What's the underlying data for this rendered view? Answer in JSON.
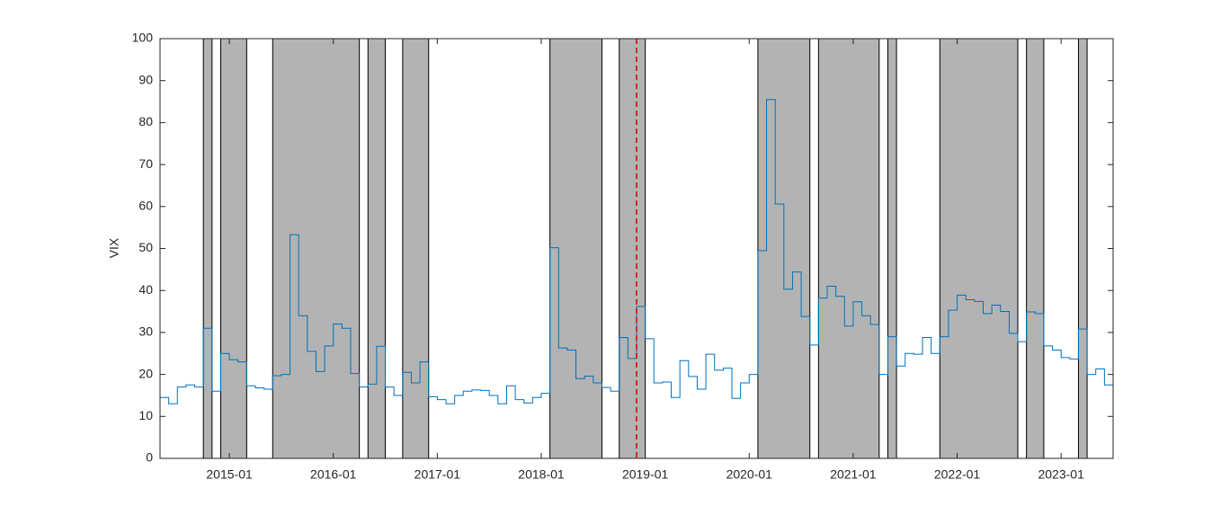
{
  "chart_data": {
    "type": "line",
    "ylabel": "VIX",
    "ylim": [
      0,
      100
    ],
    "yticks": [
      0,
      10,
      20,
      30,
      40,
      50,
      60,
      70,
      80,
      90,
      100
    ],
    "xlim": [
      "2014-05",
      "2023-07"
    ],
    "xticks": [
      "2015-01",
      "2016-01",
      "2017-01",
      "2018-01",
      "2019-01",
      "2020-01",
      "2021-01",
      "2022-01",
      "2023-01"
    ],
    "step": true,
    "shaded_regions": [
      [
        "2014-10",
        "2014-11"
      ],
      [
        "2014-12",
        "2015-03"
      ],
      [
        "2015-06",
        "2016-04"
      ],
      [
        "2016-05",
        "2016-07"
      ],
      [
        "2016-09",
        "2016-12"
      ],
      [
        "2018-02",
        "2018-08"
      ],
      [
        "2018-10",
        "2019-01"
      ],
      [
        "2020-02",
        "2020-08"
      ],
      [
        "2020-09",
        "2021-04"
      ],
      [
        "2021-05",
        "2021-06"
      ],
      [
        "2021-11",
        "2022-08"
      ],
      [
        "2022-09",
        "2022-11"
      ],
      [
        "2023-03",
        "2023-04"
      ]
    ],
    "shade_color": "#b3b3b3",
    "vline": "2018-12",
    "vline_color": "#d62728",
    "series": [
      {
        "color": "#0072bd",
        "x": [
          "2014-05",
          "2014-06",
          "2014-07",
          "2014-08",
          "2014-09",
          "2014-10",
          "2014-11",
          "2014-12",
          "2015-01",
          "2015-02",
          "2015-03",
          "2015-04",
          "2015-05",
          "2015-06",
          "2015-07",
          "2015-08",
          "2015-09",
          "2015-10",
          "2015-11",
          "2015-12",
          "2016-01",
          "2016-02",
          "2016-03",
          "2016-04",
          "2016-05",
          "2016-06",
          "2016-07",
          "2016-08",
          "2016-09",
          "2016-10",
          "2016-11",
          "2016-12",
          "2017-01",
          "2017-02",
          "2017-03",
          "2017-04",
          "2017-05",
          "2017-06",
          "2017-07",
          "2017-08",
          "2017-09",
          "2017-10",
          "2017-11",
          "2017-12",
          "2018-01",
          "2018-02",
          "2018-03",
          "2018-04",
          "2018-05",
          "2018-06",
          "2018-07",
          "2018-08",
          "2018-09",
          "2018-10",
          "2018-11",
          "2018-12",
          "2019-01",
          "2019-02",
          "2019-03",
          "2019-04",
          "2019-05",
          "2019-06",
          "2019-07",
          "2019-08",
          "2019-09",
          "2019-10",
          "2019-11",
          "2019-12",
          "2020-01",
          "2020-02",
          "2020-03",
          "2020-04",
          "2020-05",
          "2020-06",
          "2020-07",
          "2020-08",
          "2020-09",
          "2020-10",
          "2020-11",
          "2020-12",
          "2021-01",
          "2021-02",
          "2021-03",
          "2021-04",
          "2021-05",
          "2021-06",
          "2021-07",
          "2021-08",
          "2021-09",
          "2021-10",
          "2021-11",
          "2021-12",
          "2022-01",
          "2022-02",
          "2022-03",
          "2022-04",
          "2022-05",
          "2022-06",
          "2022-07",
          "2022-08",
          "2022-09",
          "2022-10",
          "2022-11",
          "2022-12",
          "2023-01",
          "2023-02",
          "2023-03",
          "2023-04",
          "2023-05",
          "2023-06"
        ],
        "values": [
          14.5,
          13,
          17,
          17.5,
          17,
          31,
          16,
          25,
          23.5,
          23,
          17.3,
          16.8,
          16.5,
          19.7,
          20,
          53.3,
          34,
          25.5,
          20.7,
          26.8,
          32,
          31,
          20.2,
          17,
          17.7,
          26.7,
          17,
          15,
          20.5,
          18,
          23,
          14.7,
          14,
          13,
          15,
          16,
          16.3,
          16.2,
          15,
          13,
          17.3,
          14,
          13.2,
          14.5,
          15.5,
          50.2,
          26.3,
          25.8,
          19,
          19.6,
          18,
          16.9,
          16,
          28.8,
          23.8,
          36.2,
          28.5,
          18,
          18.2,
          14.5,
          23.3,
          19.5,
          16.5,
          24.8,
          21,
          21.5,
          14.3,
          18,
          20,
          49.5,
          85.5,
          60.6,
          40.3,
          44.4,
          33.8,
          27,
          38.2,
          41,
          38.6,
          31.5,
          37.3,
          34,
          31.9,
          20,
          29,
          22,
          25,
          24.8,
          28.8,
          25,
          29,
          35.3,
          38.9,
          37.8,
          37.4,
          34.5,
          36.5,
          35,
          29.8,
          27.8,
          34.9,
          34.5,
          26.8,
          25.8,
          24,
          23.7,
          30.8,
          20,
          21.3,
          17.5
        ]
      }
    ]
  }
}
